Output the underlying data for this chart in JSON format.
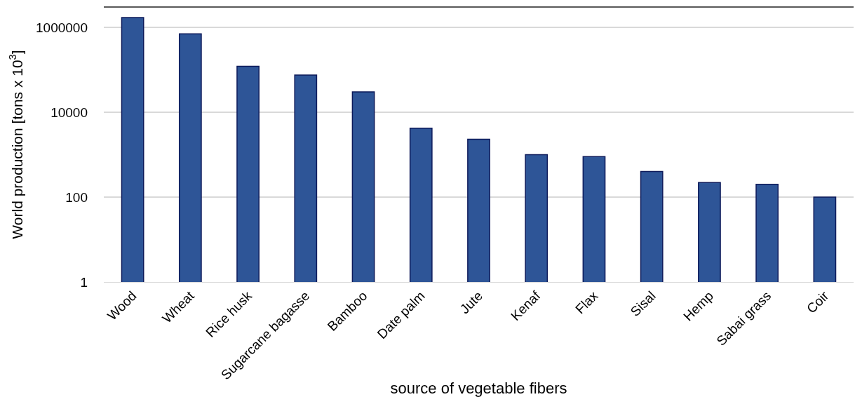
{
  "chart_data": {
    "type": "bar",
    "xlabel": "source of vegetable fibers",
    "ylabel": "World production [tons x 10$^{3}$]",
    "categories": [
      "Wood",
      "Wheat",
      "Rice husk",
      "Sugarcane bagasse",
      "Bamboo",
      "Date palm",
      "Jute",
      "Kenaf",
      "Flax",
      "Sisal",
      "Hemp",
      "Sabai grass",
      "Coir"
    ],
    "values": [
      1700000,
      700000,
      120000,
      75000,
      30000,
      4200,
      2300,
      1000,
      900,
      400,
      220,
      200,
      100
    ],
    "color": "#2e5597",
    "log": "y",
    "ylim": [
      1,
      3000000
    ],
    "yticks": [
      1,
      100,
      10000,
      1000000
    ],
    "grid": "y"
  }
}
